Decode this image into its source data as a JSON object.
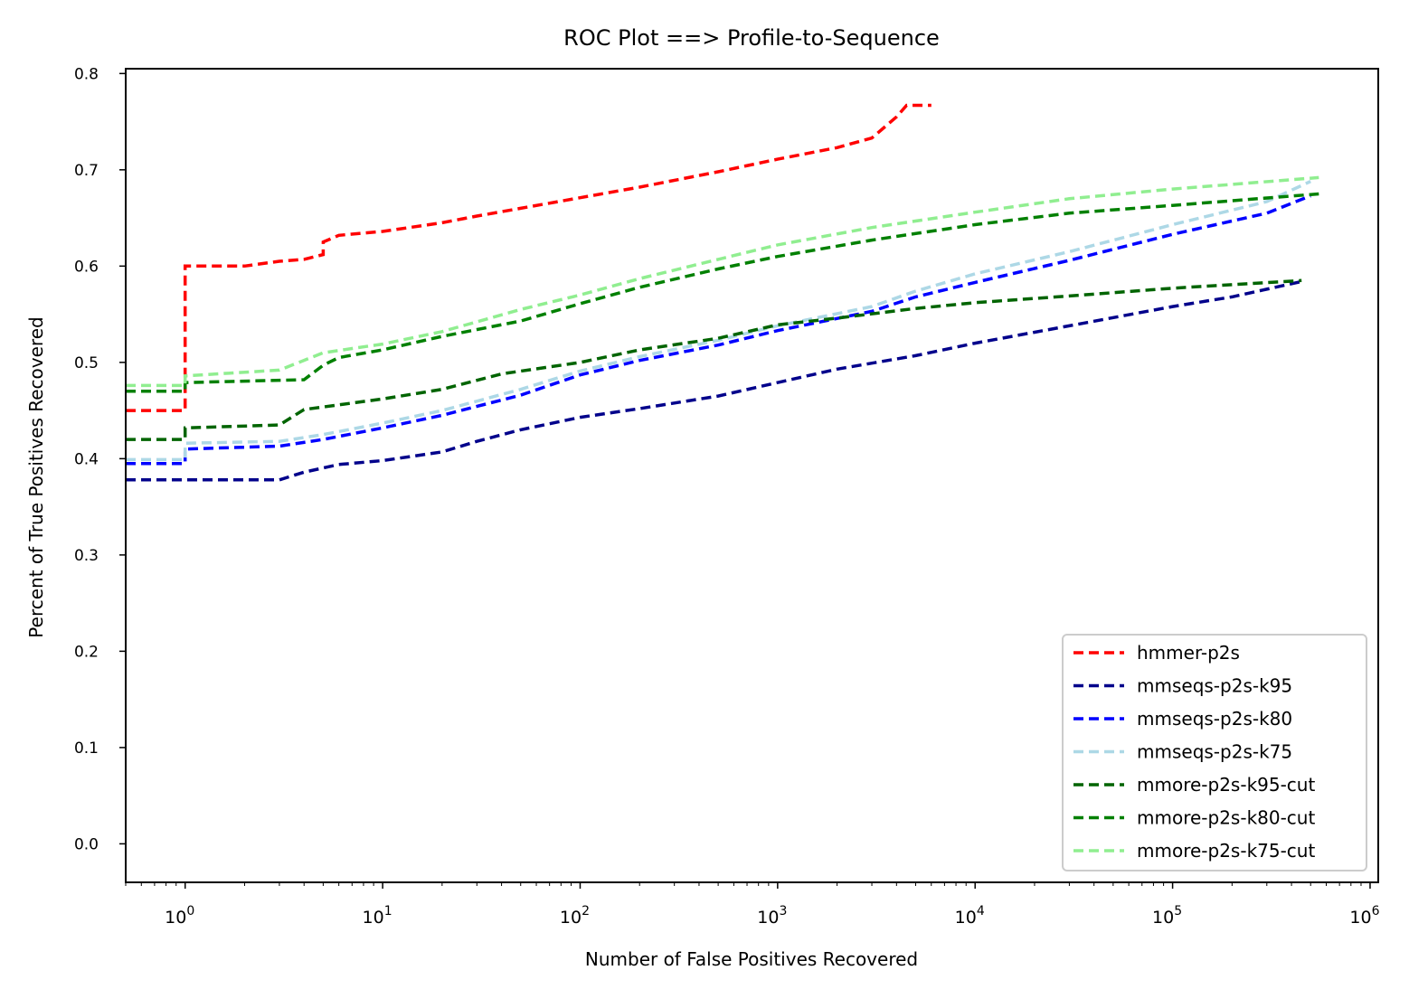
{
  "chart_data": {
    "type": "line",
    "title": "ROC Plot ==> Profile-to-Sequence",
    "xlabel": "Number of False Positives Recovered",
    "ylabel": "Percent of True Positives Recovered",
    "xscale": "log",
    "xlim": [
      0.5,
      1100000
    ],
    "ylim": [
      -0.04,
      0.805
    ],
    "x_ticks": [
      1,
      10,
      100,
      1000,
      10000,
      100000,
      1000000
    ],
    "x_tick_base": "10",
    "x_tick_exponents": [
      "0",
      "1",
      "2",
      "3",
      "4",
      "5",
      "6"
    ],
    "y_ticks": [
      0.0,
      0.1,
      0.2,
      0.3,
      0.4,
      0.5,
      0.6,
      0.7,
      0.8
    ],
    "y_tick_labels": [
      "0.0",
      "0.1",
      "0.2",
      "0.3",
      "0.4",
      "0.5",
      "0.6",
      "0.7",
      "0.8"
    ],
    "grid": false,
    "legend_position": "lower-right",
    "line_style": "dashed",
    "series": [
      {
        "name": "hmmer-p2s",
        "color": "#ff0000",
        "points": [
          [
            0.5,
            0.45
          ],
          [
            1,
            0.45
          ],
          [
            1,
            0.6
          ],
          [
            2,
            0.6
          ],
          [
            3,
            0.605
          ],
          [
            4,
            0.607
          ],
          [
            5,
            0.612
          ],
          [
            5,
            0.625
          ],
          [
            6,
            0.632
          ],
          [
            10,
            0.636
          ],
          [
            20,
            0.645
          ],
          [
            30,
            0.652
          ],
          [
            50,
            0.66
          ],
          [
            100,
            0.671
          ],
          [
            200,
            0.682
          ],
          [
            500,
            0.698
          ],
          [
            1000,
            0.711
          ],
          [
            2000,
            0.723
          ],
          [
            3000,
            0.733
          ],
          [
            4000,
            0.755
          ],
          [
            4500,
            0.767
          ],
          [
            6000,
            0.767
          ]
        ]
      },
      {
        "name": "mmseqs-p2s-k95",
        "color": "#00008b",
        "points": [
          [
            0.5,
            0.378
          ],
          [
            1,
            0.378
          ],
          [
            3,
            0.378
          ],
          [
            4,
            0.386
          ],
          [
            6,
            0.394
          ],
          [
            10,
            0.398
          ],
          [
            20,
            0.407
          ],
          [
            30,
            0.418
          ],
          [
            50,
            0.43
          ],
          [
            100,
            0.443
          ],
          [
            200,
            0.452
          ],
          [
            500,
            0.465
          ],
          [
            1000,
            0.479
          ],
          [
            2000,
            0.493
          ],
          [
            5000,
            0.507
          ],
          [
            10000,
            0.52
          ],
          [
            30000,
            0.538
          ],
          [
            100000,
            0.558
          ],
          [
            200000,
            0.568
          ],
          [
            450000,
            0.584
          ]
        ]
      },
      {
        "name": "mmseqs-p2s-k80",
        "color": "#0000ff",
        "points": [
          [
            0.5,
            0.395
          ],
          [
            1,
            0.395
          ],
          [
            1,
            0.41
          ],
          [
            3,
            0.413
          ],
          [
            5,
            0.42
          ],
          [
            10,
            0.432
          ],
          [
            20,
            0.445
          ],
          [
            50,
            0.466
          ],
          [
            100,
            0.487
          ],
          [
            200,
            0.502
          ],
          [
            500,
            0.518
          ],
          [
            1000,
            0.533
          ],
          [
            3000,
            0.553
          ],
          [
            5000,
            0.568
          ],
          [
            10000,
            0.583
          ],
          [
            30000,
            0.606
          ],
          [
            100000,
            0.633
          ],
          [
            300000,
            0.655
          ],
          [
            500000,
            0.673
          ]
        ]
      },
      {
        "name": "mmseqs-p2s-k75",
        "color": "#add8e6",
        "points": [
          [
            0.5,
            0.399
          ],
          [
            1,
            0.399
          ],
          [
            1,
            0.416
          ],
          [
            3,
            0.418
          ],
          [
            5,
            0.425
          ],
          [
            10,
            0.437
          ],
          [
            20,
            0.45
          ],
          [
            50,
            0.472
          ],
          [
            100,
            0.491
          ],
          [
            200,
            0.506
          ],
          [
            500,
            0.523
          ],
          [
            1000,
            0.538
          ],
          [
            3000,
            0.558
          ],
          [
            5000,
            0.574
          ],
          [
            10000,
            0.592
          ],
          [
            30000,
            0.615
          ],
          [
            100000,
            0.643
          ],
          [
            300000,
            0.667
          ],
          [
            500000,
            0.688
          ]
        ]
      },
      {
        "name": "mmore-p2s-k95-cut",
        "color": "#006400",
        "points": [
          [
            0.5,
            0.42
          ],
          [
            1,
            0.42
          ],
          [
            1,
            0.432
          ],
          [
            3,
            0.435
          ],
          [
            4,
            0.451
          ],
          [
            10,
            0.462
          ],
          [
            20,
            0.472
          ],
          [
            40,
            0.488
          ],
          [
            100,
            0.5
          ],
          [
            200,
            0.513
          ],
          [
            500,
            0.525
          ],
          [
            1000,
            0.539
          ],
          [
            2000,
            0.546
          ],
          [
            5000,
            0.556
          ],
          [
            10000,
            0.562
          ],
          [
            30000,
            0.569
          ],
          [
            100000,
            0.577
          ],
          [
            450000,
            0.585
          ]
        ]
      },
      {
        "name": "mmore-p2s-k80-cut",
        "color": "#008000",
        "points": [
          [
            0.5,
            0.47
          ],
          [
            1,
            0.47
          ],
          [
            1,
            0.479
          ],
          [
            4,
            0.482
          ],
          [
            5,
            0.497
          ],
          [
            6,
            0.505
          ],
          [
            10,
            0.513
          ],
          [
            20,
            0.527
          ],
          [
            50,
            0.543
          ],
          [
            100,
            0.561
          ],
          [
            200,
            0.578
          ],
          [
            500,
            0.597
          ],
          [
            1000,
            0.61
          ],
          [
            3000,
            0.627
          ],
          [
            10000,
            0.643
          ],
          [
            30000,
            0.655
          ],
          [
            100000,
            0.663
          ],
          [
            550000,
            0.675
          ]
        ]
      },
      {
        "name": "mmore-p2s-k75-cut",
        "color": "#90ee90",
        "points": [
          [
            0.5,
            0.476
          ],
          [
            1,
            0.476
          ],
          [
            1,
            0.486
          ],
          [
            3,
            0.492
          ],
          [
            5,
            0.51
          ],
          [
            10,
            0.519
          ],
          [
            20,
            0.532
          ],
          [
            50,
            0.555
          ],
          [
            100,
            0.57
          ],
          [
            200,
            0.587
          ],
          [
            500,
            0.607
          ],
          [
            1000,
            0.622
          ],
          [
            3000,
            0.64
          ],
          [
            10000,
            0.656
          ],
          [
            30000,
            0.67
          ],
          [
            100000,
            0.68
          ],
          [
            550000,
            0.692
          ]
        ]
      }
    ]
  }
}
